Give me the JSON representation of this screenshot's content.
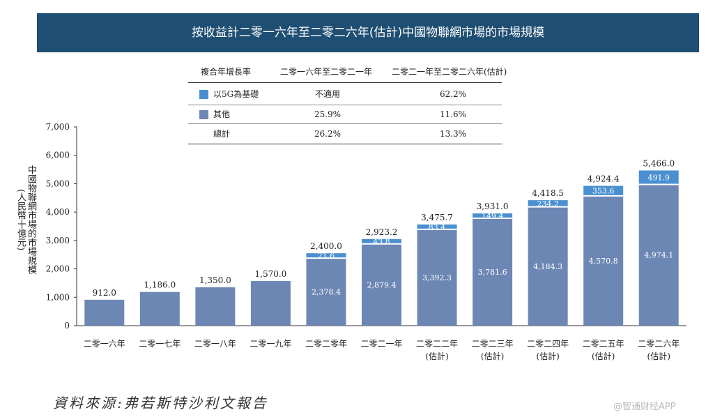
{
  "title": "按收益計二零一六年至二零二六年(估計)中國物聯網市場的市場規模",
  "table": {
    "headers": [
      "複合年增長率",
      "二零一六年至二零二一年",
      "二零二一年至二零二六年(估計)"
    ],
    "rows": [
      {
        "label": "以5G為基礎",
        "a": "不適用",
        "b": "62.2%",
        "color": "#4a90d0"
      },
      {
        "label": "其他",
        "a": "25.9%",
        "b": "11.6%",
        "color": "#6d87b5"
      },
      {
        "label": "總計",
        "a": "26.2%",
        "b": "13.3%"
      }
    ]
  },
  "y_axis_label": [
    "中國物聯網市場的市場規模",
    "(人民幣十億元)"
  ],
  "chart_data": {
    "type": "bar",
    "stacked": true,
    "categories": [
      "二零一六年",
      "二零一七年",
      "二零一八年",
      "二零一九年",
      "二零二零年",
      "二零二一年",
      "二零二二年",
      "二零二三年",
      "二零二四年",
      "二零二五年",
      "二零二六年"
    ],
    "category_sub": [
      "",
      "",
      "",
      "",
      "",
      "",
      "(估計)",
      "(估計)",
      "(估計)",
      "(估計)",
      "(估計)"
    ],
    "series": [
      {
        "name": "其他",
        "color": "#6d87b5",
        "values": [
          912.0,
          1186.0,
          1350.0,
          1570.0,
          2378.4,
          2879.4,
          3392.3,
          3781.6,
          4184.3,
          4570.8,
          4974.1
        ],
        "labels": [
          null,
          null,
          null,
          null,
          "2,378.4",
          "2,879.4",
          "3,392.3",
          "3,781.6",
          "4,184.3",
          "4,570.8",
          "4,974.1"
        ]
      },
      {
        "name": "以5G為基礎",
        "color": "#4a90d0",
        "values": [
          0,
          0,
          0,
          0,
          21.6,
          43.8,
          83.4,
          149.4,
          234.2,
          353.6,
          491.9
        ],
        "labels": [
          null,
          null,
          null,
          null,
          "21.6",
          "43.8",
          "83.4",
          "149.4",
          "234.2",
          "353.6",
          "491.9"
        ]
      }
    ],
    "totals": [
      "912.0",
      "1,186.0",
      "1,350.0",
      "1,570.0",
      "2,400.0",
      "2,923.2",
      "3,475.7",
      "3,931.0",
      "4,418.5",
      "4,924.4",
      "5,466.0"
    ],
    "ylim": [
      0,
      7000
    ],
    "yticks": [
      0,
      1000,
      2000,
      3000,
      4000,
      5000,
      6000,
      7000
    ],
    "ytick_labels": [
      "0",
      "1,000",
      "2,000",
      "3,000",
      "4,000",
      "5,000",
      "6,000",
      "7,000"
    ]
  },
  "source": "資料來源:弗若斯特沙利文報告",
  "watermark": "@智通财经APP"
}
